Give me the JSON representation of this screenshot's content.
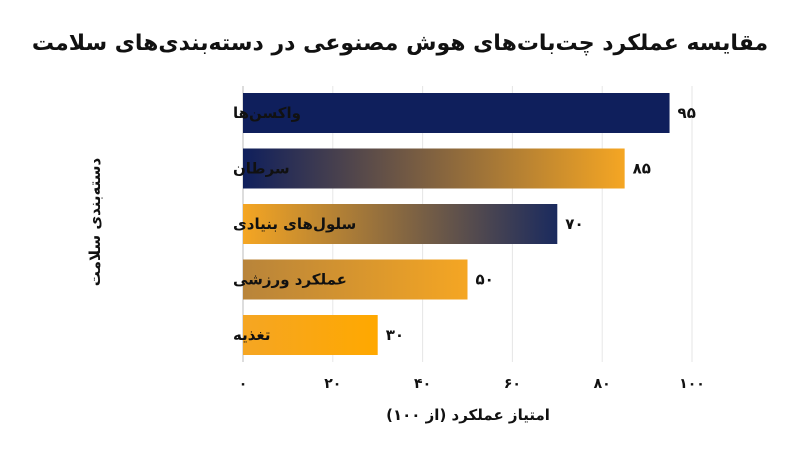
{
  "chart_data": {
    "type": "bar",
    "orientation": "horizontal",
    "title": "مقایسه عملکرد چت‌بات‌های هوش مصنوعی در دسته‌بندی‌های سلامت",
    "xlabel": "امتیاز عملکرد (از ۱۰۰)",
    "ylabel": "دسته‌بندی سلامت",
    "categories": [
      "واکسن‌ها",
      "سرطان",
      "سلول‌های بنیادی",
      "عملکرد ورزشی",
      "تغذیه"
    ],
    "values": [
      95,
      85,
      70,
      50,
      30
    ],
    "value_labels": [
      "۹۵",
      "۸۵",
      "۷۰",
      "۵۰",
      "۳۰"
    ],
    "xlim": [
      0,
      100
    ],
    "x_ticks": [
      0,
      20,
      40,
      60,
      80,
      100
    ],
    "x_tick_labels": [
      "۰",
      "۲۰",
      "۴۰",
      "۶۰",
      "۸۰",
      "۱۰۰"
    ],
    "grid": true,
    "legend": "none",
    "colors": {
      "navy": "#0f1f5c",
      "orange": "#f5a623",
      "amber": "#ffa800",
      "bronze": "#b8843a"
    },
    "bar_gradients": [
      [
        "#0f1f5c",
        "#0f1f5c"
      ],
      [
        "#0f1f5c",
        "#f5a623"
      ],
      [
        "#f5a623",
        "#1a2a5e"
      ],
      [
        "#b8843a",
        "#f5a623"
      ],
      [
        "#f5a623",
        "#ffa800"
      ]
    ]
  }
}
